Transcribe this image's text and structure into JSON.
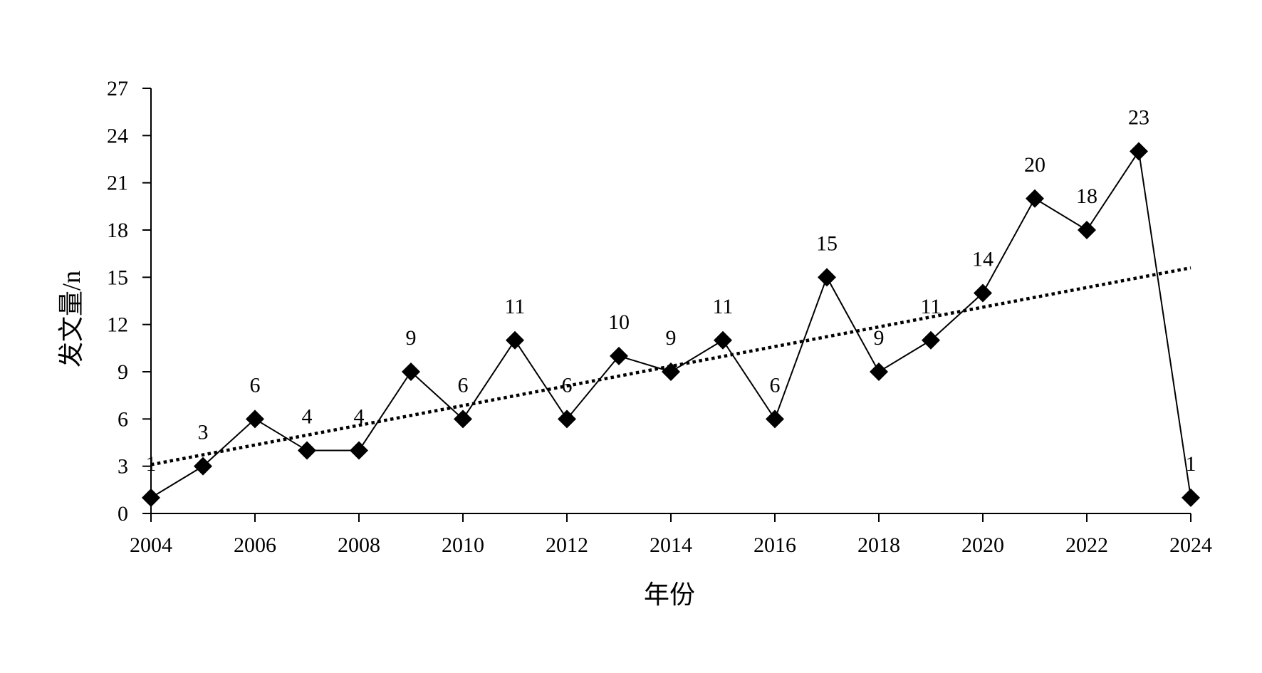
{
  "chart_data": {
    "type": "line",
    "x": [
      2004,
      2005,
      2006,
      2007,
      2008,
      2009,
      2010,
      2011,
      2012,
      2013,
      2014,
      2015,
      2016,
      2017,
      2018,
      2019,
      2020,
      2021,
      2022,
      2023,
      2024
    ],
    "series": [
      {
        "values": [
          1,
          3,
          6,
          4,
          4,
          9,
          6,
          11,
          6,
          10,
          9,
          11,
          6,
          15,
          9,
          11,
          14,
          20,
          18,
          23,
          1
        ],
        "marker": "diamond",
        "color": "#000000"
      }
    ],
    "trendline": {
      "style": "dotted",
      "color": "#000000",
      "start": {
        "x": 2004,
        "y": 3.1
      },
      "end": {
        "x": 2024,
        "y": 15.6
      }
    },
    "xlabel": "年份",
    "ylabel": "发文量/n",
    "xlim": [
      2004,
      2024
    ],
    "ylim": [
      0,
      27
    ],
    "xticks": [
      "2004",
      "2006",
      "2008",
      "2010",
      "2012",
      "2014",
      "2016",
      "2018",
      "2020",
      "2022",
      "2024"
    ],
    "yticks": [
      "0",
      "3",
      "6",
      "9",
      "12",
      "15",
      "18",
      "21",
      "24",
      "27"
    ],
    "grid": false,
    "legend": "none"
  }
}
